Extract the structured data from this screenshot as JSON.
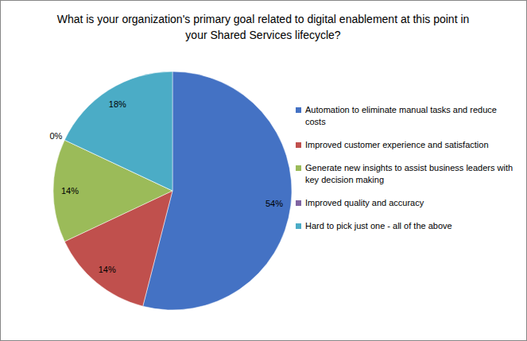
{
  "chart_data": {
    "type": "pie",
    "title": "What is your organization's primary goal related to digital enablement at this point in your Shared Services lifecycle?",
    "categories": [
      "Automation to eliminate manual tasks and reduce costs",
      "Improved customer experience and satisfaction",
      "Generate new insights to assist business leaders with key decision making",
      "Improved quality and accuracy",
      "Hard to pick just one - all of the above"
    ],
    "values": [
      54,
      14,
      14,
      0,
      18
    ],
    "value_labels": [
      "54%",
      "14%",
      "14%",
      "0%",
      "18%"
    ],
    "colors": [
      "#4472c4",
      "#c0504d",
      "#9bbb59",
      "#8064a2",
      "#4bacc6"
    ],
    "data_labels": true,
    "legend": "right"
  }
}
